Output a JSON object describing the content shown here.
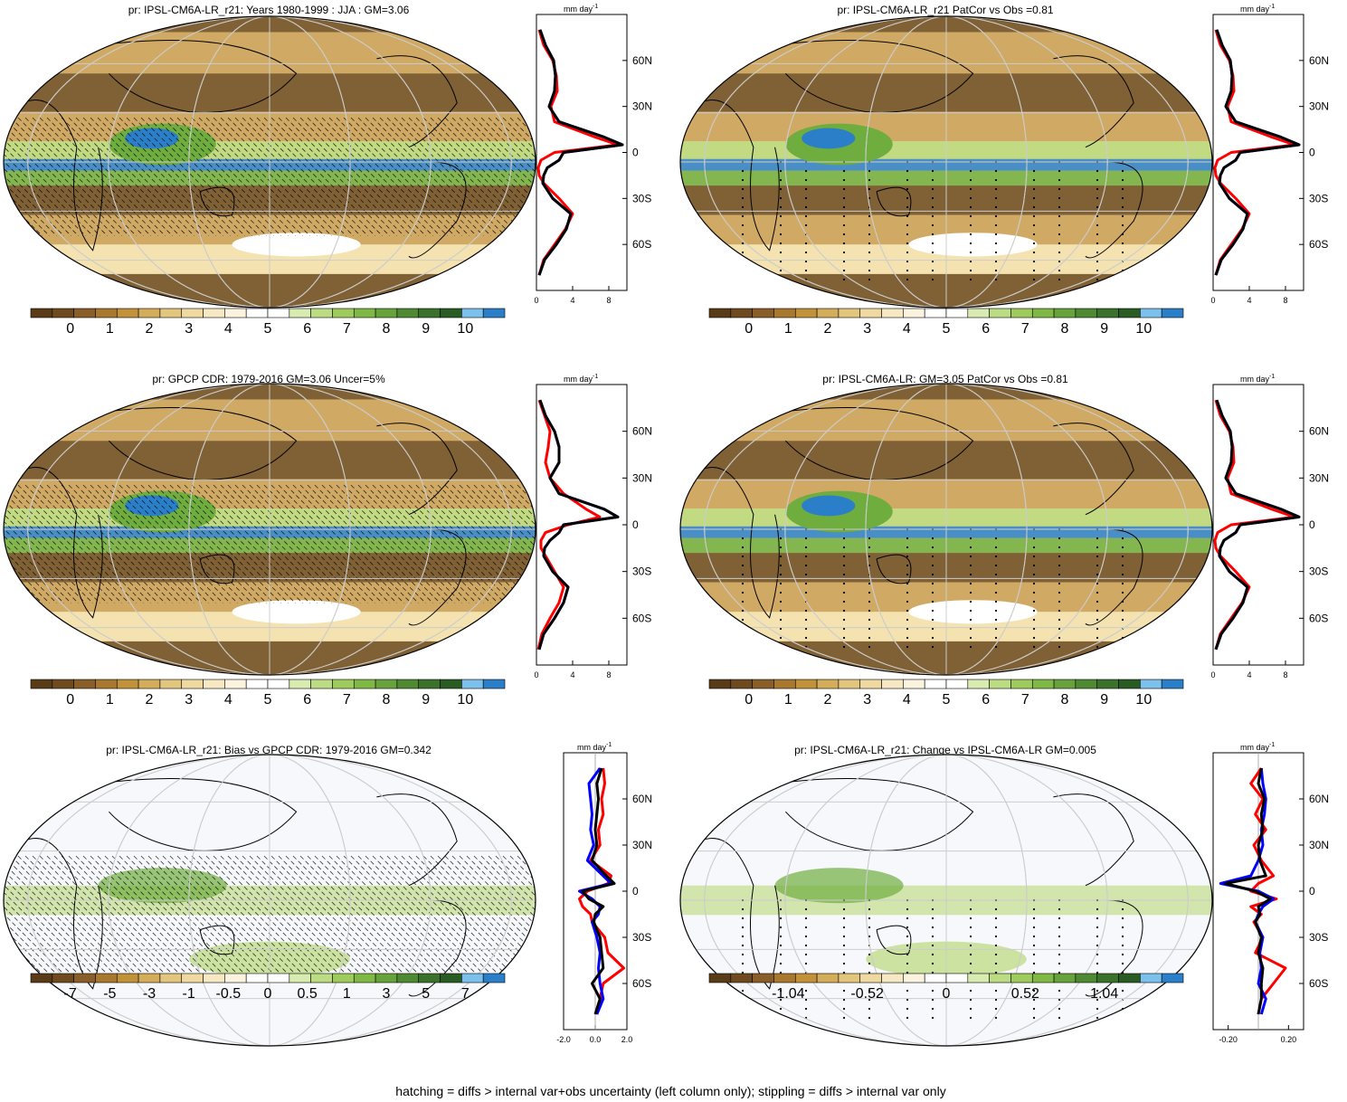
{
  "footer": "hatching = diffs > internal var+obs uncertainty (left column only); stippling = diffs > internal var only",
  "zonal_unit": "mm day",
  "zonal_unit_exp": "-1",
  "lat_ticks": [
    "60N",
    "30N",
    "0",
    "30S",
    "60S"
  ],
  "colors": {
    "brown_dark": "#6b4a20",
    "tan": "#c9a057",
    "light_tan": "#f3e3b0",
    "white": "#ffffff",
    "light_green": "#b9d87a",
    "green": "#6fae3e",
    "dark_green": "#2f6b2a",
    "light_blue": "#7cc0ec",
    "blue": "#2a7fc8",
    "red": "#ff0000",
    "black": "#000000",
    "series_blue": "#0000ff"
  },
  "panels": [
    {
      "title": "pr: IPSL-CM6A-LR_r21: Years 1980-1999 : JJA : GM=3.06",
      "cbar_labels": [
        "0",
        "1",
        "2",
        "3",
        "4",
        "5",
        "6",
        "7",
        "8",
        "9",
        "10"
      ],
      "cbar_colors": [
        "#5a3b17",
        "#6e4a1e",
        "#8a5e28",
        "#a8782f",
        "#c2923b",
        "#d4ad5a",
        "#e3c67e",
        "#efd9a0",
        "#f6e8c2",
        "#fbf3de",
        "#ffffff",
        "#ffffff",
        "#d8ebb0",
        "#bcdc83",
        "#9ecb5b",
        "#80b846",
        "#67a23c",
        "#4f8a33",
        "#3a722b",
        "#295b22",
        "#7cc0ec",
        "#2a7fc8"
      ],
      "zonal_xticks": [
        "0",
        "4",
        "8"
      ],
      "zonal_xrange": [
        0,
        10
      ],
      "hatch": "lines"
    },
    {
      "title": "pr: IPSL-CM6A-LR_r21 PatCor vs Obs =0.81",
      "cbar_labels": [
        "0",
        "1",
        "2",
        "3",
        "4",
        "5",
        "6",
        "7",
        "8",
        "9",
        "10"
      ],
      "cbar_colors": [
        "#5a3b17",
        "#6e4a1e",
        "#8a5e28",
        "#a8782f",
        "#c2923b",
        "#d4ad5a",
        "#e3c67e",
        "#efd9a0",
        "#f6e8c2",
        "#fbf3de",
        "#ffffff",
        "#ffffff",
        "#d8ebb0",
        "#bcdc83",
        "#9ecb5b",
        "#80b846",
        "#67a23c",
        "#4f8a33",
        "#3a722b",
        "#295b22",
        "#7cc0ec",
        "#2a7fc8"
      ],
      "zonal_xticks": [
        "0",
        "4",
        "8"
      ],
      "zonal_xrange": [
        0,
        10
      ],
      "hatch": "dots"
    },
    {
      "title": "pr: GPCP CDR: 1979-2016 GM=3.06 Uncer=5%",
      "cbar_labels": [
        "0",
        "1",
        "2",
        "3",
        "4",
        "5",
        "6",
        "7",
        "8",
        "9",
        "10"
      ],
      "cbar_colors": [
        "#5a3b17",
        "#6e4a1e",
        "#8a5e28",
        "#a8782f",
        "#c2923b",
        "#d4ad5a",
        "#e3c67e",
        "#efd9a0",
        "#f6e8c2",
        "#fbf3de",
        "#ffffff",
        "#ffffff",
        "#d8ebb0",
        "#bcdc83",
        "#9ecb5b",
        "#80b846",
        "#67a23c",
        "#4f8a33",
        "#3a722b",
        "#295b22",
        "#7cc0ec",
        "#2a7fc8"
      ],
      "zonal_xticks": [
        "0",
        "4",
        "8"
      ],
      "zonal_xrange": [
        0,
        10
      ],
      "hatch": "lines"
    },
    {
      "title": "pr: IPSL-CM6A-LR: GM=3.05 PatCor vs Obs =0.81",
      "cbar_labels": [
        "0",
        "1",
        "2",
        "3",
        "4",
        "5",
        "6",
        "7",
        "8",
        "9",
        "10"
      ],
      "cbar_colors": [
        "#5a3b17",
        "#6e4a1e",
        "#8a5e28",
        "#a8782f",
        "#c2923b",
        "#d4ad5a",
        "#e3c67e",
        "#efd9a0",
        "#f6e8c2",
        "#fbf3de",
        "#ffffff",
        "#ffffff",
        "#d8ebb0",
        "#bcdc83",
        "#9ecb5b",
        "#80b846",
        "#67a23c",
        "#4f8a33",
        "#3a722b",
        "#295b22",
        "#7cc0ec",
        "#2a7fc8"
      ],
      "zonal_xticks": [
        "0",
        "4",
        "8"
      ],
      "zonal_xrange": [
        0,
        10
      ],
      "hatch": "dots"
    },
    {
      "title": "pr: IPSL-CM6A-LR_r21: Bias vs GPCP CDR: 1979-2016 GM=0.342",
      "cbar_labels": [
        "-7",
        "-5",
        "-3",
        "-1",
        "-0.5",
        "0",
        "0.5",
        "1",
        "3",
        "5",
        "7"
      ],
      "cbar_colors": [
        "#5a3b17",
        "#6e4a1e",
        "#8a5e28",
        "#a8782f",
        "#c2923b",
        "#d4ad5a",
        "#e3c67e",
        "#efd9a0",
        "#f6e8c2",
        "#fbf3de",
        "#ffffff",
        "#ffffff",
        "#d8ebb0",
        "#bcdc83",
        "#9ecb5b",
        "#80b846",
        "#67a23c",
        "#4f8a33",
        "#3a722b",
        "#295b22",
        "#7cc0ec",
        "#2a7fc8"
      ],
      "zonal_xticks": [
        "-2.0",
        "0.0",
        "2.0"
      ],
      "zonal_xrange": [
        -2,
        2
      ],
      "hatch": "lines"
    },
    {
      "title": "pr: IPSL-CM6A-LR_r21: Change vs IPSL-CM6A-LR GM=0.005",
      "cbar_labels": [
        "-1.04",
        "-0.52",
        "0",
        "0.52",
        "1.04"
      ],
      "cbar_colors": [
        "#5a3b17",
        "#6e4a1e",
        "#8a5e28",
        "#a8782f",
        "#c2923b",
        "#d4ad5a",
        "#e3c67e",
        "#efd9a0",
        "#f6e8c2",
        "#fbf3de",
        "#ffffff",
        "#ffffff",
        "#d8ebb0",
        "#bcdc83",
        "#9ecb5b",
        "#80b846",
        "#67a23c",
        "#4f8a33",
        "#3a722b",
        "#295b22",
        "#7cc0ec",
        "#2a7fc8"
      ],
      "zonal_xticks": [
        "-0.20",
        "0.20"
      ],
      "zonal_xrange": [
        -0.3,
        0.3
      ],
      "hatch": "dots"
    }
  ],
  "chart_data": [
    {
      "type": "line",
      "title": "",
      "xlabel": "mm day-1",
      "ylabel": "",
      "y_axis": "latitude",
      "y": [
        80,
        70,
        60,
        50,
        40,
        30,
        20,
        10,
        5,
        0,
        -5,
        -10,
        -15,
        -20,
        -30,
        -40,
        -50,
        -60,
        -70,
        -80
      ],
      "xlim": [
        0,
        10
      ],
      "series": [
        {
          "color": "#ff0000",
          "values": [
            0.3,
            0.8,
            1.8,
            2.2,
            2.3,
            1.6,
            2.0,
            6.5,
            9.0,
            2.0,
            0.5,
            0.2,
            0.3,
            0.8,
            2.5,
            4.0,
            3.2,
            2.0,
            0.8,
            0.3
          ]
        },
        {
          "color": "#0000ff",
          "values": [
            0.4,
            1.0,
            1.9,
            2.1,
            2.0,
            1.4,
            2.5,
            7.5,
            9.5,
            3.0,
            2.5,
            1.2,
            0.8,
            0.7,
            1.8,
            3.8,
            3.3,
            2.2,
            0.9,
            0.3
          ]
        },
        {
          "color": "#000000",
          "values": [
            0.4,
            1.0,
            1.9,
            2.1,
            2.0,
            1.4,
            2.5,
            7.5,
            9.5,
            3.0,
            2.5,
            1.2,
            0.8,
            0.7,
            1.8,
            3.8,
            3.3,
            2.2,
            0.9,
            0.3
          ]
        }
      ]
    },
    {
      "type": "line",
      "title": "",
      "xlabel": "mm day-1",
      "ylabel": "",
      "y_axis": "latitude",
      "y": [
        80,
        70,
        60,
        50,
        40,
        30,
        20,
        10,
        5,
        0,
        -5,
        -10,
        -15,
        -20,
        -30,
        -40,
        -50,
        -60,
        -70,
        -80
      ],
      "xlim": [
        0,
        10
      ],
      "series": [
        {
          "color": "#ff0000",
          "values": [
            0.3,
            0.8,
            1.8,
            2.2,
            2.3,
            1.6,
            2.0,
            6.5,
            9.0,
            2.0,
            0.5,
            0.2,
            0.3,
            0.8,
            2.5,
            4.0,
            3.2,
            2.0,
            0.8,
            0.3
          ]
        },
        {
          "color": "#0000ff",
          "values": [
            0.4,
            1.0,
            1.9,
            2.1,
            2.0,
            1.4,
            2.5,
            7.5,
            9.5,
            3.0,
            2.5,
            1.2,
            0.8,
            0.7,
            1.8,
            3.8,
            3.3,
            2.2,
            0.9,
            0.3
          ]
        },
        {
          "color": "#000000",
          "values": [
            0.4,
            1.0,
            1.9,
            2.1,
            2.0,
            1.4,
            2.5,
            7.5,
            9.5,
            3.0,
            2.5,
            1.2,
            0.8,
            0.7,
            1.8,
            3.8,
            3.3,
            2.2,
            0.9,
            0.3
          ]
        }
      ]
    },
    {
      "type": "line",
      "title": "",
      "xlabel": "mm day-1",
      "ylabel": "",
      "y_axis": "latitude",
      "y": [
        80,
        70,
        60,
        50,
        40,
        30,
        20,
        10,
        5,
        0,
        -5,
        -10,
        -15,
        -20,
        -30,
        -40,
        -50,
        -60,
        -70,
        -80
      ],
      "xlim": [
        0,
        10
      ],
      "series": [
        {
          "color": "#ff0000",
          "values": [
            0.3,
            0.9,
            1.5,
            1.3,
            1.0,
            1.5,
            3.0,
            5.5,
            7.0,
            3.5,
            1.0,
            0.5,
            0.5,
            1.0,
            2.0,
            3.0,
            2.5,
            1.5,
            0.6,
            0.2
          ]
        },
        {
          "color": "#0000ff",
          "values": [
            0.4,
            1.0,
            2.0,
            2.5,
            2.5,
            1.5,
            2.5,
            7.5,
            9.0,
            3.0,
            2.5,
            1.5,
            0.9,
            0.8,
            1.8,
            3.5,
            3.0,
            2.0,
            0.8,
            0.3
          ]
        },
        {
          "color": "#000000",
          "values": [
            0.4,
            1.0,
            2.0,
            2.5,
            2.5,
            1.5,
            2.5,
            7.5,
            9.0,
            3.0,
            2.5,
            1.5,
            0.9,
            0.8,
            1.8,
            3.5,
            3.0,
            2.0,
            0.8,
            0.3
          ]
        }
      ]
    },
    {
      "type": "line",
      "title": "",
      "xlabel": "mm day-1",
      "ylabel": "",
      "y_axis": "latitude",
      "y": [
        80,
        70,
        60,
        50,
        40,
        30,
        20,
        10,
        5,
        0,
        -5,
        -10,
        -15,
        -20,
        -30,
        -40,
        -50,
        -60,
        -70,
        -80
      ],
      "xlim": [
        0,
        10
      ],
      "series": [
        {
          "color": "#ff0000",
          "values": [
            0.3,
            0.8,
            1.8,
            2.2,
            2.3,
            1.6,
            2.0,
            6.5,
            9.0,
            2.0,
            0.5,
            0.2,
            0.3,
            0.8,
            2.5,
            4.0,
            3.2,
            2.0,
            0.8,
            0.3
          ]
        },
        {
          "color": "#0000ff",
          "values": [
            0.4,
            1.0,
            1.9,
            2.1,
            2.0,
            1.4,
            2.5,
            7.5,
            9.5,
            3.0,
            2.5,
            1.2,
            0.8,
            0.7,
            1.8,
            3.8,
            3.3,
            2.2,
            0.9,
            0.3
          ]
        },
        {
          "color": "#000000",
          "values": [
            0.4,
            1.0,
            1.9,
            2.1,
            2.0,
            1.4,
            2.5,
            7.5,
            9.5,
            3.0,
            2.5,
            1.2,
            0.8,
            0.7,
            1.8,
            3.8,
            3.3,
            2.2,
            0.9,
            0.3
          ]
        }
      ]
    },
    {
      "type": "line",
      "title": "",
      "xlabel": "mm day-1",
      "ylabel": "",
      "y_axis": "latitude",
      "y": [
        80,
        70,
        60,
        50,
        40,
        30,
        20,
        10,
        5,
        0,
        -5,
        -10,
        -15,
        -20,
        -30,
        -40,
        -50,
        -60,
        -70,
        -80
      ],
      "xlim": [
        -2,
        2
      ],
      "series": [
        {
          "color": "#ff0000",
          "values": [
            0.5,
            0.6,
            0.4,
            0.5,
            0.2,
            0.3,
            -0.3,
            1.0,
            0.8,
            -0.5,
            -1.0,
            -0.8,
            -0.3,
            -0.2,
            0.6,
            0.8,
            1.8,
            0.5,
            0.3,
            0.1
          ]
        },
        {
          "color": "#0000ff",
          "values": [
            0.3,
            -0.4,
            -0.3,
            -0.2,
            -0.3,
            -0.1,
            -0.5,
            0.5,
            1.0,
            -1.0,
            -0.2,
            0.3,
            0.2,
            -0.2,
            0.1,
            0.3,
            0.2,
            0.3,
            0.5,
            0.1
          ]
        },
        {
          "color": "#000000",
          "values": [
            0.4,
            0.1,
            0.2,
            0.1,
            0.0,
            0.1,
            -0.2,
            0.7,
            1.2,
            -0.8,
            -0.4,
            0.5,
            0.0,
            -0.1,
            0.3,
            0.4,
            0.5,
            -0.2,
            0.3,
            0.0
          ]
        }
      ]
    },
    {
      "type": "line",
      "title": "",
      "xlabel": "mm day-1",
      "ylabel": "",
      "y_axis": "latitude",
      "y": [
        80,
        70,
        60,
        50,
        40,
        30,
        20,
        10,
        5,
        0,
        -5,
        -10,
        -15,
        -20,
        -30,
        -40,
        -50,
        -60,
        -70,
        -80
      ],
      "xlim": [
        -0.3,
        0.3
      ],
      "series": [
        {
          "color": "#ff0000",
          "values": [
            0.02,
            -0.05,
            0.03,
            -0.02,
            0.05,
            -0.03,
            0.02,
            0.1,
            0.0,
            -0.05,
            0.12,
            -0.05,
            0.02,
            -0.03,
            0.03,
            -0.02,
            0.18,
            0.1,
            0.02,
            0.0
          ]
        },
        {
          "color": "#0000ff",
          "values": [
            0.02,
            0.03,
            0.05,
            0.04,
            0.02,
            0.03,
            0.0,
            -0.05,
            -0.25,
            0.0,
            0.1,
            0.03,
            0.0,
            -0.02,
            0.03,
            0.01,
            0.02,
            0.0,
            0.05,
            0.02
          ]
        },
        {
          "color": "#000000",
          "values": [
            0.02,
            0.0,
            0.04,
            0.02,
            0.03,
            0.0,
            0.01,
            0.05,
            -0.22,
            -0.02,
            0.08,
            0.0,
            0.01,
            -0.02,
            0.02,
            0.0,
            0.03,
            0.02,
            0.02,
            0.0
          ]
        }
      ]
    }
  ]
}
